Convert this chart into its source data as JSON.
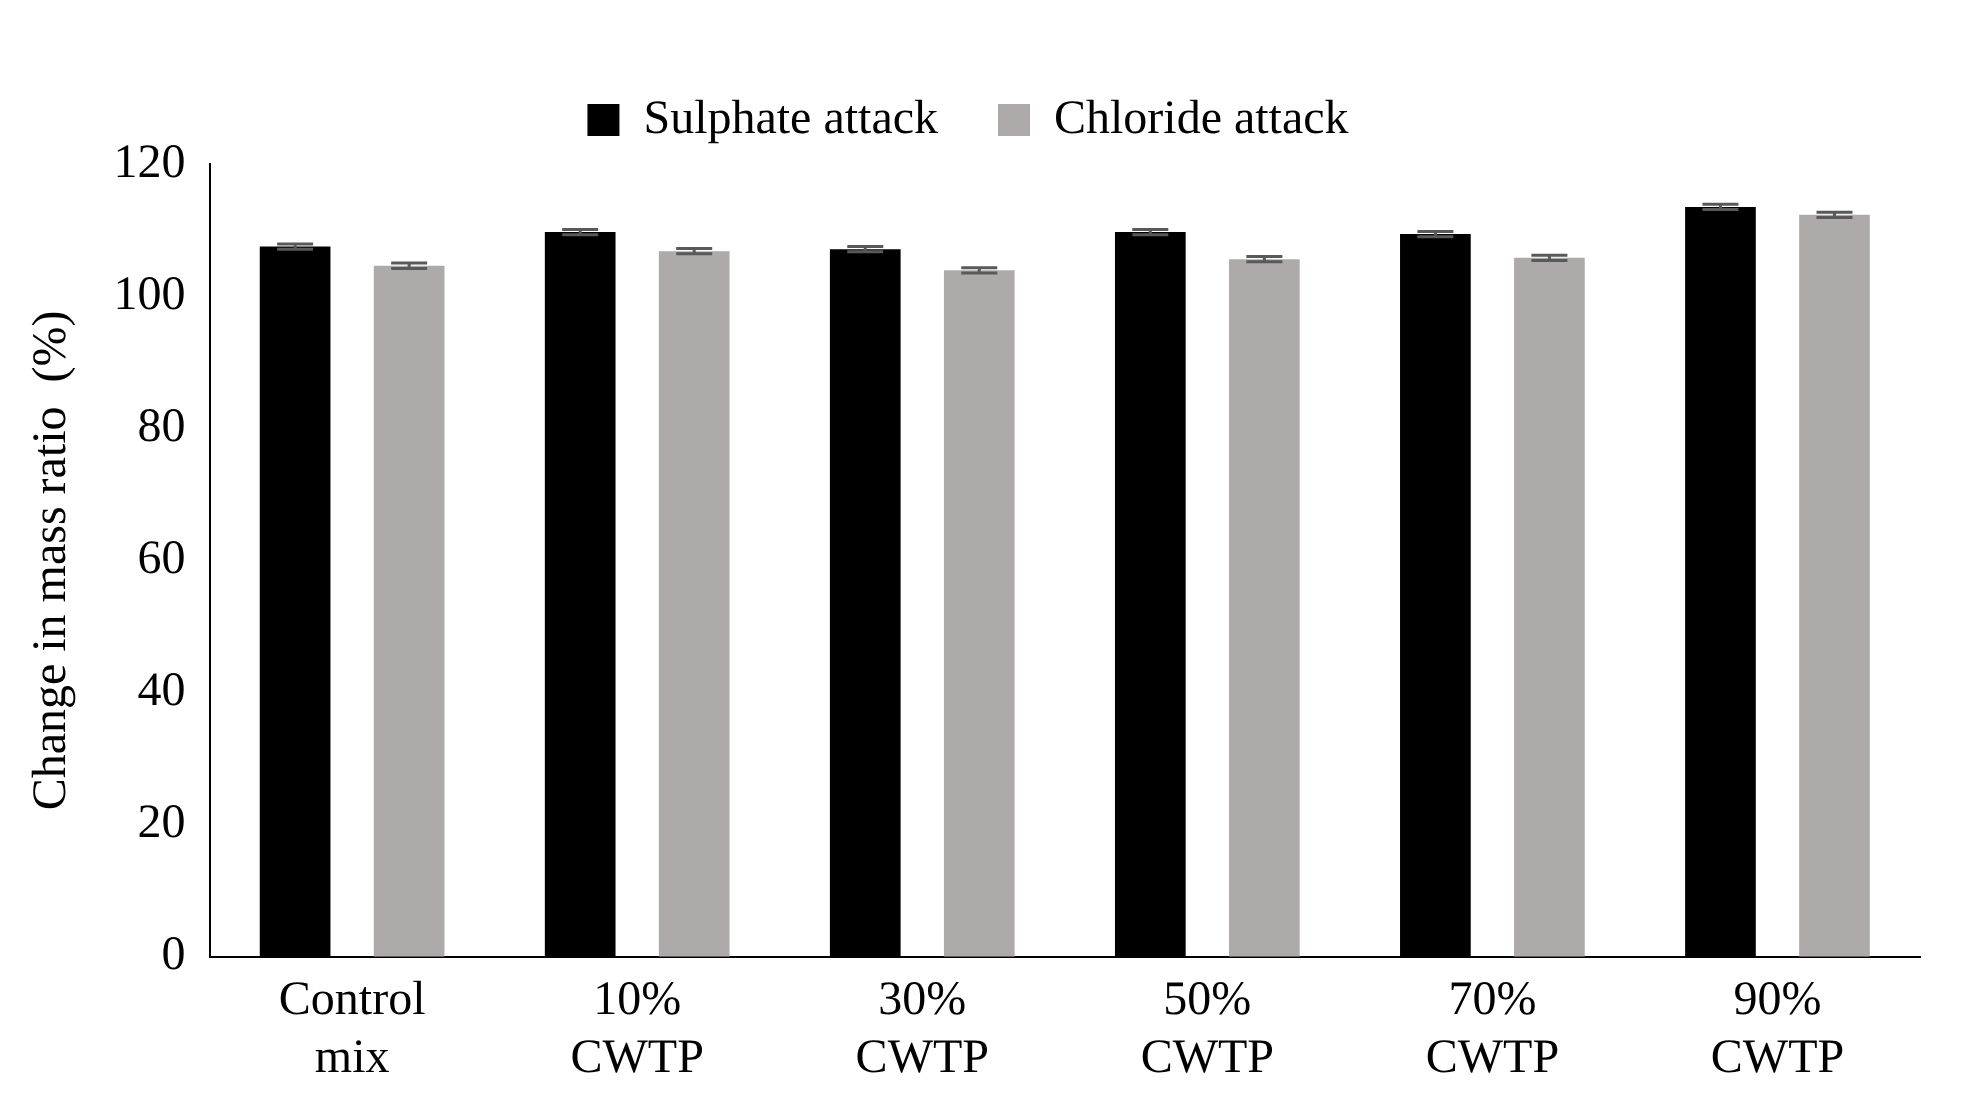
{
  "chart_data": {
    "type": "bar",
    "ylabel": "Change in mass ratio  (%)",
    "categories": [
      "Control mix",
      "10% CWTP",
      "30% CWTP",
      "50% CWTP",
      "70% CWTP",
      "90% CWTP"
    ],
    "series": [
      {
        "name": "Sulphate attack",
        "color": "#000000",
        "values": [
          107.5,
          109.7,
          107.1,
          109.7,
          109.4,
          113.5
        ],
        "errors": [
          0.4,
          0.4,
          0.4,
          0.4,
          0.4,
          0.4
        ]
      },
      {
        "name": "Chloride attack",
        "color": "#aeaaaa",
        "values": [
          104.6,
          106.8,
          103.9,
          105.6,
          105.8,
          112.3
        ],
        "errors": [
          0.4,
          0.4,
          0.4,
          0.4,
          0.4,
          0.4
        ]
      }
    ],
    "ylim": [
      0,
      120
    ],
    "yticks": [
      0,
      20,
      40,
      60,
      80,
      100,
      120
    ],
    "grid": false,
    "legend": "top"
  }
}
